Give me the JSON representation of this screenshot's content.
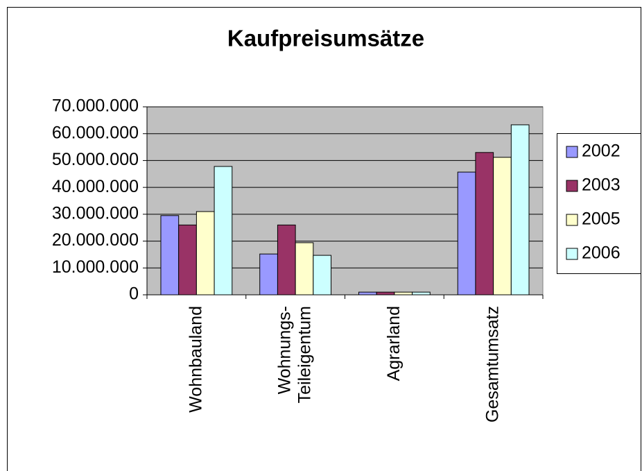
{
  "chart_data": {
    "type": "bar",
    "title": "Kaufpreisumsätze",
    "categories": [
      "Wohnbauland",
      "Wohnungs-\nTeileigentum",
      "Agrarland",
      "Gesamtumsatz"
    ],
    "series": [
      {
        "name": "2002",
        "color": "#9999ff",
        "values": [
          29500000,
          15200000,
          1000000,
          45700000
        ]
      },
      {
        "name": "2003",
        "color": "#993366",
        "values": [
          26000000,
          26000000,
          1000000,
          53000000
        ]
      },
      {
        "name": "2005",
        "color": "#ffffcc",
        "values": [
          31000000,
          19400000,
          1000000,
          51200000
        ]
      },
      {
        "name": "2006",
        "color": "#ccffff",
        "values": [
          47800000,
          14700000,
          1000000,
          63300000
        ]
      }
    ],
    "ylim": [
      0,
      70000000
    ],
    "yticks": [
      0,
      {
        "value": 10000000,
        "label": "10.000.000"
      },
      {
        "value": 20000000,
        "label": "20.000.000"
      },
      {
        "value": 30000000,
        "label": "30.000.000"
      },
      {
        "value": 40000000,
        "label": "40.000.000"
      },
      {
        "value": 50000000,
        "label": "50.000.000"
      },
      {
        "value": 60000000,
        "label": "60.000.000"
      },
      {
        "value": 70000000,
        "label": "70.000.000"
      }
    ],
    "grid": true,
    "legend": "right"
  }
}
